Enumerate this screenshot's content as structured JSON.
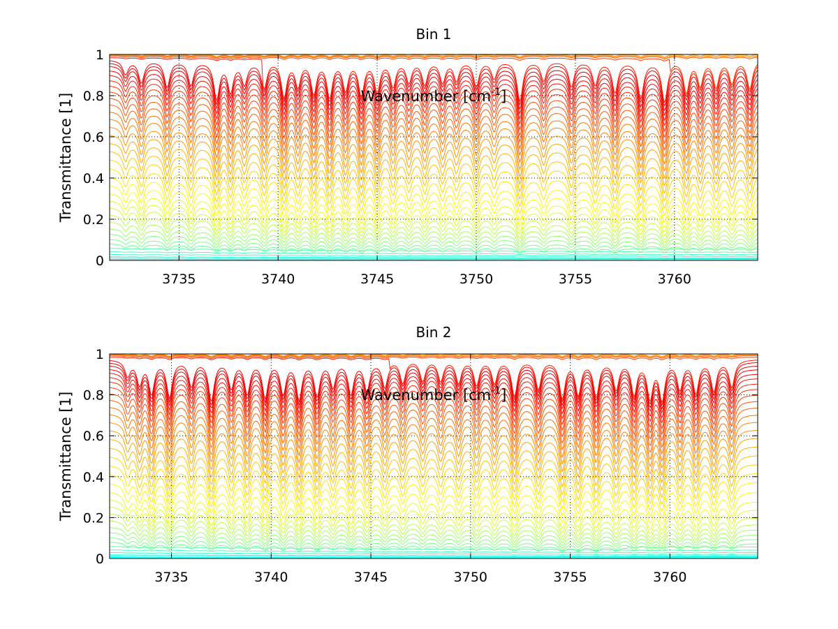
{
  "chart_data": [
    {
      "type": "line",
      "title": "Bin 1",
      "xlabel": "Wavenumber [cm",
      "xlabel_sup": "-1",
      "xlabel_end": "]",
      "ylabel": "Transmittance [1]",
      "xlim": [
        3731.5,
        3764.2
      ],
      "ylim": [
        0,
        1
      ],
      "xticks": [
        3735,
        3740,
        3745,
        3750,
        3755,
        3760
      ],
      "yticks": [
        0,
        0.2,
        0.4,
        0.6,
        0.8,
        1
      ],
      "xtick_labels": [
        "3735",
        "3740",
        "3745",
        "3750",
        "3755",
        "3760"
      ],
      "ytick_labels": [
        "0",
        "0.2",
        "0.4",
        "0.6",
        "0.8",
        "1"
      ],
      "grid": true,
      "colormap": "jet",
      "series_count": 40,
      "baseline_transmittance_x": [
        3731.5,
        3740,
        3748,
        3756,
        3764.2
      ],
      "baseline_transmittance_levels": [
        [
          0.005,
          0.005,
          0.005,
          0.005,
          0.005
        ],
        [
          0.02,
          0.018,
          0.016,
          0.015,
          0.014
        ],
        [
          0.05,
          0.045,
          0.04,
          0.037,
          0.035
        ],
        [
          0.1,
          0.09,
          0.082,
          0.076,
          0.07
        ],
        [
          0.16,
          0.145,
          0.135,
          0.128,
          0.12
        ],
        [
          0.24,
          0.215,
          0.2,
          0.19,
          0.18
        ],
        [
          0.32,
          0.29,
          0.28,
          0.27,
          0.26
        ],
        [
          0.41,
          0.39,
          0.37,
          0.36,
          0.34
        ],
        [
          0.51,
          0.49,
          0.48,
          0.47,
          0.45
        ],
        [
          0.6,
          0.59,
          0.58,
          0.57,
          0.56
        ],
        [
          0.69,
          0.68,
          0.67,
          0.66,
          0.65
        ],
        [
          0.77,
          0.76,
          0.75,
          0.74,
          0.73
        ],
        [
          0.84,
          0.83,
          0.82,
          0.81,
          0.8
        ],
        [
          0.9,
          0.89,
          0.88,
          0.87,
          0.86
        ],
        [
          0.95,
          0.94,
          0.93,
          0.92,
          0.91
        ],
        [
          0.98,
          0.975,
          0.97,
          0.965,
          0.96
        ],
        [
          0.995,
          0.993,
          0.99,
          0.99,
          0.985
        ],
        [
          1,
          1,
          1,
          1,
          1
        ]
      ],
      "absorption_lines_cm-1": [
        3732.3,
        3733.1,
        3734.4,
        3735.6,
        3736.9,
        3737.6,
        3738.3,
        3739.3,
        3740.3,
        3741.0,
        3741.8,
        3742.6,
        3743.4,
        3744.2,
        3745.0,
        3745.8,
        3746.6,
        3747.4,
        3748.3,
        3749.0,
        3750.0,
        3750.9,
        3752.2,
        3753.4,
        3754.8,
        3756.0,
        3757.0,
        3758.3,
        3759.5,
        3760.6,
        3761.3,
        3762.1,
        3762.9,
        3763.8
      ],
      "absorption_depths": [
        0.3,
        0.5,
        0.6,
        0.55,
        0.9,
        0.7,
        0.5,
        0.65,
        0.9,
        0.6,
        0.8,
        0.9,
        0.7,
        0.85,
        0.75,
        0.6,
        0.5,
        0.55,
        0.5,
        0.45,
        0.6,
        0.4,
        1.0,
        0.45,
        0.6,
        0.55,
        0.75,
        0.9,
        1.0,
        0.8,
        0.6,
        0.65,
        0.55,
        0.7
      ]
    },
    {
      "type": "line",
      "title": "Bin 2",
      "xlabel": "Wavenumber [cm",
      "xlabel_sup": "-1",
      "xlabel_end": "]",
      "ylabel": "Transmittance [1]",
      "xlim": [
        3731.9,
        3764.4
      ],
      "ylim": [
        0,
        1
      ],
      "xticks": [
        3735,
        3740,
        3745,
        3750,
        3755,
        3760
      ],
      "yticks": [
        0,
        0.2,
        0.4,
        0.6,
        0.8,
        1
      ],
      "xtick_labels": [
        "3735",
        "3740",
        "3745",
        "3750",
        "3755",
        "3760"
      ],
      "ytick_labels": [
        "0",
        "0.2",
        "0.4",
        "0.6",
        "0.8",
        "1"
      ],
      "grid": true,
      "colormap": "jet",
      "series_count": 40,
      "baseline_transmittance_x": [
        3731.9,
        3740,
        3748,
        3756,
        3764.4
      ],
      "baseline_transmittance_levels": [
        [
          0.005,
          0.005,
          0.005,
          0.005,
          0.005
        ],
        [
          0.02,
          0.018,
          0.016,
          0.015,
          0.014
        ],
        [
          0.05,
          0.045,
          0.04,
          0.037,
          0.035
        ],
        [
          0.1,
          0.09,
          0.082,
          0.076,
          0.07
        ],
        [
          0.16,
          0.145,
          0.135,
          0.128,
          0.12
        ],
        [
          0.24,
          0.215,
          0.2,
          0.19,
          0.18
        ],
        [
          0.32,
          0.3,
          0.29,
          0.28,
          0.27
        ],
        [
          0.42,
          0.41,
          0.4,
          0.39,
          0.38
        ],
        [
          0.52,
          0.51,
          0.5,
          0.49,
          0.48
        ],
        [
          0.62,
          0.61,
          0.6,
          0.59,
          0.58
        ],
        [
          0.71,
          0.7,
          0.69,
          0.68,
          0.67
        ],
        [
          0.79,
          0.78,
          0.77,
          0.76,
          0.75
        ],
        [
          0.86,
          0.85,
          0.84,
          0.83,
          0.82
        ],
        [
          0.91,
          0.9,
          0.9,
          0.89,
          0.88
        ],
        [
          0.95,
          0.95,
          0.94,
          0.94,
          0.93
        ],
        [
          0.98,
          0.98,
          0.975,
          0.97,
          0.97
        ],
        [
          0.995,
          0.993,
          0.99,
          0.99,
          0.99
        ],
        [
          1,
          1,
          1,
          1,
          1
        ]
      ],
      "absorption_lines_cm-1": [
        3732.8,
        3733.4,
        3734.0,
        3734.9,
        3736.0,
        3737.0,
        3738.0,
        3738.8,
        3739.7,
        3740.6,
        3741.4,
        3742.3,
        3743.1,
        3744.0,
        3744.8,
        3745.7,
        3746.6,
        3747.6,
        3748.5,
        3749.4,
        3750.3,
        3751.2,
        3752.2,
        3753.4,
        3754.6,
        3755.4,
        3756.3,
        3757.3,
        3758.2,
        3759.0,
        3759.6,
        3760.5,
        3761.3,
        3762.2,
        3763.1
      ],
      "absorption_depths": [
        0.35,
        0.55,
        0.8,
        0.9,
        0.6,
        1.0,
        0.65,
        0.8,
        0.9,
        0.8,
        0.95,
        0.85,
        0.6,
        0.8,
        0.7,
        0.6,
        0.55,
        0.5,
        0.5,
        0.55,
        0.6,
        0.55,
        0.9,
        0.7,
        0.95,
        0.85,
        0.9,
        0.7,
        0.85,
        0.95,
        1.0,
        0.7,
        0.8,
        0.75,
        0.65
      ]
    }
  ]
}
